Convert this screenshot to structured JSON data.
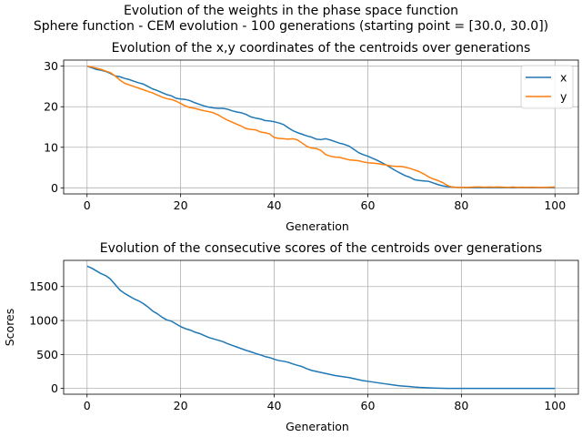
{
  "figure": {
    "suptitle_line1": "Evolution of the weights in the phase space  function",
    "suptitle_line2": "Sphere function - CEM evolution - 100 generations (starting point = [30.0, 30.0])"
  },
  "chart_data": [
    {
      "type": "line",
      "title": "Evolution of the x,y coordinates of the centroids over generations",
      "xlabel": "Generation",
      "ylabel": "",
      "xlim": [
        -5,
        105
      ],
      "ylim": [
        -1.5,
        31.5
      ],
      "xticks": [
        0,
        20,
        40,
        60,
        80,
        100
      ],
      "yticks": [
        0,
        10,
        20,
        30
      ],
      "grid": true,
      "legend_position": "top-right",
      "x": [
        0,
        1,
        2,
        3,
        4,
        5,
        6,
        7,
        8,
        9,
        10,
        11,
        12,
        13,
        14,
        15,
        16,
        17,
        18,
        19,
        20,
        21,
        22,
        23,
        24,
        25,
        26,
        27,
        28,
        29,
        30,
        31,
        32,
        33,
        34,
        35,
        36,
        37,
        38,
        39,
        40,
        41,
        42,
        43,
        44,
        45,
        46,
        47,
        48,
        49,
        50,
        51,
        52,
        53,
        54,
        55,
        56,
        57,
        58,
        59,
        60,
        61,
        62,
        63,
        64,
        65,
        66,
        67,
        68,
        69,
        70,
        71,
        72,
        73,
        74,
        75,
        76,
        77,
        78,
        79,
        80,
        81,
        82,
        83,
        84,
        85,
        86,
        87,
        88,
        89,
        90,
        91,
        92,
        93,
        94,
        95,
        96,
        97,
        98,
        99,
        100
      ],
      "series": [
        {
          "name": "x",
          "color": "#1f77b4",
          "values": [
            30.0,
            29.6,
            29.2,
            29.0,
            28.7,
            28.2,
            27.6,
            27.4,
            27.0,
            26.7,
            26.3,
            25.9,
            25.6,
            25.0,
            24.4,
            24.0,
            23.5,
            23.0,
            22.7,
            22.1,
            21.9,
            21.8,
            21.5,
            21.0,
            20.6,
            20.2,
            19.9,
            19.7,
            19.6,
            19.6,
            19.4,
            19.0,
            18.7,
            18.5,
            18.1,
            17.5,
            17.2,
            17.0,
            16.6,
            16.5,
            16.3,
            16.0,
            15.6,
            14.8,
            14.1,
            13.6,
            13.2,
            12.8,
            12.5,
            12.0,
            11.9,
            12.1,
            11.8,
            11.4,
            11.0,
            10.7,
            10.3,
            9.5,
            8.7,
            8.2,
            7.8,
            7.3,
            6.8,
            6.2,
            5.6,
            4.9,
            4.2,
            3.6,
            3.0,
            2.6,
            2.0,
            1.8,
            1.7,
            1.6,
            1.2,
            0.8,
            0.5,
            0.3,
            0.2,
            0.1,
            0.1,
            0.05,
            0.05,
            0.05,
            0.05,
            0.05,
            0.05,
            0.05,
            0.05,
            0.05,
            0.05,
            0.05,
            0.05,
            0.05,
            0.05,
            0.05,
            0.05,
            0.05,
            0.05,
            0.05,
            0.05
          ]
        },
        {
          "name": "y",
          "color": "#ff7f0e",
          "values": [
            30.0,
            29.8,
            29.5,
            29.2,
            28.8,
            28.4,
            27.6,
            26.6,
            25.8,
            25.4,
            25.0,
            24.6,
            24.2,
            23.8,
            23.4,
            22.9,
            22.4,
            22.0,
            21.8,
            21.4,
            20.8,
            20.2,
            19.8,
            19.6,
            19.3,
            19.0,
            18.8,
            18.5,
            18.0,
            17.3,
            16.7,
            16.2,
            15.7,
            15.2,
            14.6,
            14.4,
            14.3,
            13.8,
            13.6,
            13.3,
            12.4,
            12.2,
            12.1,
            12.0,
            12.1,
            11.8,
            11.0,
            10.2,
            9.8,
            9.7,
            9.2,
            8.2,
            7.8,
            7.6,
            7.5,
            7.2,
            6.9,
            6.8,
            6.7,
            6.4,
            6.2,
            6.1,
            6.0,
            5.8,
            5.6,
            5.4,
            5.3,
            5.3,
            5.1,
            4.8,
            4.4,
            4.0,
            3.4,
            2.7,
            2.2,
            1.8,
            1.3,
            0.6,
            0.2,
            0.1,
            0.1,
            0.1,
            0.15,
            0.2,
            0.2,
            0.15,
            0.2,
            0.15,
            0.2,
            0.15,
            0.1,
            0.2,
            0.1,
            0.15,
            0.1,
            0.15,
            0.1,
            0.1,
            0.1,
            0.15,
            0.2
          ]
        }
      ]
    },
    {
      "type": "line",
      "title": "Evolution of the consecutive scores of the centroids over generations",
      "xlabel": "Generation",
      "ylabel": "Scores",
      "xlim": [
        -5,
        105
      ],
      "ylim": [
        -85,
        1885
      ],
      "xticks": [
        0,
        20,
        40,
        60,
        80,
        100
      ],
      "yticks": [
        0,
        500,
        1000,
        1500
      ],
      "grid": true,
      "legend_position": "none",
      "x": [
        0,
        1,
        2,
        3,
        4,
        5,
        6,
        7,
        8,
        9,
        10,
        11,
        12,
        13,
        14,
        15,
        16,
        17,
        18,
        19,
        20,
        21,
        22,
        23,
        24,
        25,
        26,
        27,
        28,
        29,
        30,
        31,
        32,
        33,
        34,
        35,
        36,
        37,
        38,
        39,
        40,
        41,
        42,
        43,
        44,
        45,
        46,
        47,
        48,
        49,
        50,
        51,
        52,
        53,
        54,
        55,
        56,
        57,
        58,
        59,
        60,
        61,
        62,
        63,
        64,
        65,
        66,
        67,
        68,
        69,
        70,
        71,
        72,
        73,
        74,
        75,
        76,
        77,
        78,
        79,
        80,
        81,
        82,
        83,
        84,
        85,
        86,
        87,
        88,
        89,
        90,
        91,
        92,
        93,
        94,
        95,
        96,
        97,
        98,
        99,
        100
      ],
      "series": [
        {
          "name": "",
          "color": "#1f77b4",
          "values": [
            1800,
            1770,
            1730,
            1690,
            1660,
            1610,
            1530,
            1450,
            1400,
            1360,
            1320,
            1290,
            1250,
            1200,
            1140,
            1100,
            1050,
            1010,
            990,
            950,
            910,
            880,
            860,
            830,
            810,
            780,
            750,
            730,
            710,
            690,
            660,
            635,
            610,
            585,
            560,
            540,
            515,
            495,
            470,
            455,
            430,
            410,
            400,
            385,
            360,
            340,
            320,
            290,
            265,
            250,
            235,
            220,
            205,
            190,
            180,
            170,
            160,
            145,
            130,
            115,
            105,
            95,
            85,
            75,
            65,
            55,
            45,
            38,
            32,
            27,
            20,
            15,
            12,
            8,
            5,
            3,
            2,
            1,
            1,
            1,
            0,
            0,
            0,
            0,
            0,
            0,
            0,
            0,
            0,
            0,
            0,
            0,
            0,
            0,
            0,
            0,
            0,
            0,
            0,
            0,
            0
          ]
        }
      ]
    }
  ]
}
